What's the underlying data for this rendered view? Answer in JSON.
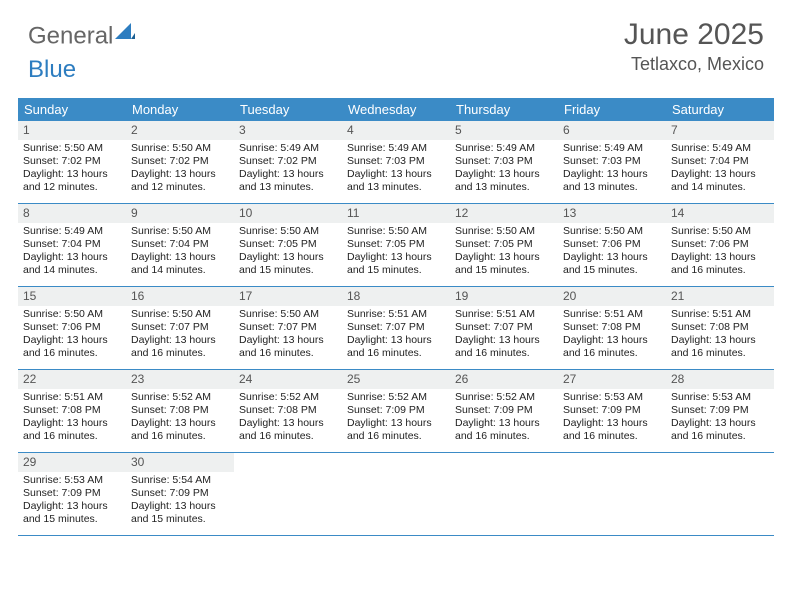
{
  "logo": {
    "part1": "General",
    "part2": "Blue"
  },
  "title": "June 2025",
  "location": "Tetlaxco, Mexico",
  "colors": {
    "header_bg": "#3b8bc6",
    "daynum_bg": "#eef0f0",
    "border": "#3b8bc6",
    "text": "#222222",
    "muted": "#555555"
  },
  "weekdays": [
    "Sunday",
    "Monday",
    "Tuesday",
    "Wednesday",
    "Thursday",
    "Friday",
    "Saturday"
  ],
  "days": [
    {
      "n": "1",
      "sunrise": "Sunrise: 5:50 AM",
      "sunset": "Sunset: 7:02 PM",
      "daylight": "Daylight: 13 hours and 12 minutes."
    },
    {
      "n": "2",
      "sunrise": "Sunrise: 5:50 AM",
      "sunset": "Sunset: 7:02 PM",
      "daylight": "Daylight: 13 hours and 12 minutes."
    },
    {
      "n": "3",
      "sunrise": "Sunrise: 5:49 AM",
      "sunset": "Sunset: 7:02 PM",
      "daylight": "Daylight: 13 hours and 13 minutes."
    },
    {
      "n": "4",
      "sunrise": "Sunrise: 5:49 AM",
      "sunset": "Sunset: 7:03 PM",
      "daylight": "Daylight: 13 hours and 13 minutes."
    },
    {
      "n": "5",
      "sunrise": "Sunrise: 5:49 AM",
      "sunset": "Sunset: 7:03 PM",
      "daylight": "Daylight: 13 hours and 13 minutes."
    },
    {
      "n": "6",
      "sunrise": "Sunrise: 5:49 AM",
      "sunset": "Sunset: 7:03 PM",
      "daylight": "Daylight: 13 hours and 13 minutes."
    },
    {
      "n": "7",
      "sunrise": "Sunrise: 5:49 AM",
      "sunset": "Sunset: 7:04 PM",
      "daylight": "Daylight: 13 hours and 14 minutes."
    },
    {
      "n": "8",
      "sunrise": "Sunrise: 5:49 AM",
      "sunset": "Sunset: 7:04 PM",
      "daylight": "Daylight: 13 hours and 14 minutes."
    },
    {
      "n": "9",
      "sunrise": "Sunrise: 5:50 AM",
      "sunset": "Sunset: 7:04 PM",
      "daylight": "Daylight: 13 hours and 14 minutes."
    },
    {
      "n": "10",
      "sunrise": "Sunrise: 5:50 AM",
      "sunset": "Sunset: 7:05 PM",
      "daylight": "Daylight: 13 hours and 15 minutes."
    },
    {
      "n": "11",
      "sunrise": "Sunrise: 5:50 AM",
      "sunset": "Sunset: 7:05 PM",
      "daylight": "Daylight: 13 hours and 15 minutes."
    },
    {
      "n": "12",
      "sunrise": "Sunrise: 5:50 AM",
      "sunset": "Sunset: 7:05 PM",
      "daylight": "Daylight: 13 hours and 15 minutes."
    },
    {
      "n": "13",
      "sunrise": "Sunrise: 5:50 AM",
      "sunset": "Sunset: 7:06 PM",
      "daylight": "Daylight: 13 hours and 15 minutes."
    },
    {
      "n": "14",
      "sunrise": "Sunrise: 5:50 AM",
      "sunset": "Sunset: 7:06 PM",
      "daylight": "Daylight: 13 hours and 16 minutes."
    },
    {
      "n": "15",
      "sunrise": "Sunrise: 5:50 AM",
      "sunset": "Sunset: 7:06 PM",
      "daylight": "Daylight: 13 hours and 16 minutes."
    },
    {
      "n": "16",
      "sunrise": "Sunrise: 5:50 AM",
      "sunset": "Sunset: 7:07 PM",
      "daylight": "Daylight: 13 hours and 16 minutes."
    },
    {
      "n": "17",
      "sunrise": "Sunrise: 5:50 AM",
      "sunset": "Sunset: 7:07 PM",
      "daylight": "Daylight: 13 hours and 16 minutes."
    },
    {
      "n": "18",
      "sunrise": "Sunrise: 5:51 AM",
      "sunset": "Sunset: 7:07 PM",
      "daylight": "Daylight: 13 hours and 16 minutes."
    },
    {
      "n": "19",
      "sunrise": "Sunrise: 5:51 AM",
      "sunset": "Sunset: 7:07 PM",
      "daylight": "Daylight: 13 hours and 16 minutes."
    },
    {
      "n": "20",
      "sunrise": "Sunrise: 5:51 AM",
      "sunset": "Sunset: 7:08 PM",
      "daylight": "Daylight: 13 hours and 16 minutes."
    },
    {
      "n": "21",
      "sunrise": "Sunrise: 5:51 AM",
      "sunset": "Sunset: 7:08 PM",
      "daylight": "Daylight: 13 hours and 16 minutes."
    },
    {
      "n": "22",
      "sunrise": "Sunrise: 5:51 AM",
      "sunset": "Sunset: 7:08 PM",
      "daylight": "Daylight: 13 hours and 16 minutes."
    },
    {
      "n": "23",
      "sunrise": "Sunrise: 5:52 AM",
      "sunset": "Sunset: 7:08 PM",
      "daylight": "Daylight: 13 hours and 16 minutes."
    },
    {
      "n": "24",
      "sunrise": "Sunrise: 5:52 AM",
      "sunset": "Sunset: 7:08 PM",
      "daylight": "Daylight: 13 hours and 16 minutes."
    },
    {
      "n": "25",
      "sunrise": "Sunrise: 5:52 AM",
      "sunset": "Sunset: 7:09 PM",
      "daylight": "Daylight: 13 hours and 16 minutes."
    },
    {
      "n": "26",
      "sunrise": "Sunrise: 5:52 AM",
      "sunset": "Sunset: 7:09 PM",
      "daylight": "Daylight: 13 hours and 16 minutes."
    },
    {
      "n": "27",
      "sunrise": "Sunrise: 5:53 AM",
      "sunset": "Sunset: 7:09 PM",
      "daylight": "Daylight: 13 hours and 16 minutes."
    },
    {
      "n": "28",
      "sunrise": "Sunrise: 5:53 AM",
      "sunset": "Sunset: 7:09 PM",
      "daylight": "Daylight: 13 hours and 16 minutes."
    },
    {
      "n": "29",
      "sunrise": "Sunrise: 5:53 AM",
      "sunset": "Sunset: 7:09 PM",
      "daylight": "Daylight: 13 hours and 15 minutes."
    },
    {
      "n": "30",
      "sunrise": "Sunrise: 5:54 AM",
      "sunset": "Sunset: 7:09 PM",
      "daylight": "Daylight: 13 hours and 15 minutes."
    }
  ]
}
